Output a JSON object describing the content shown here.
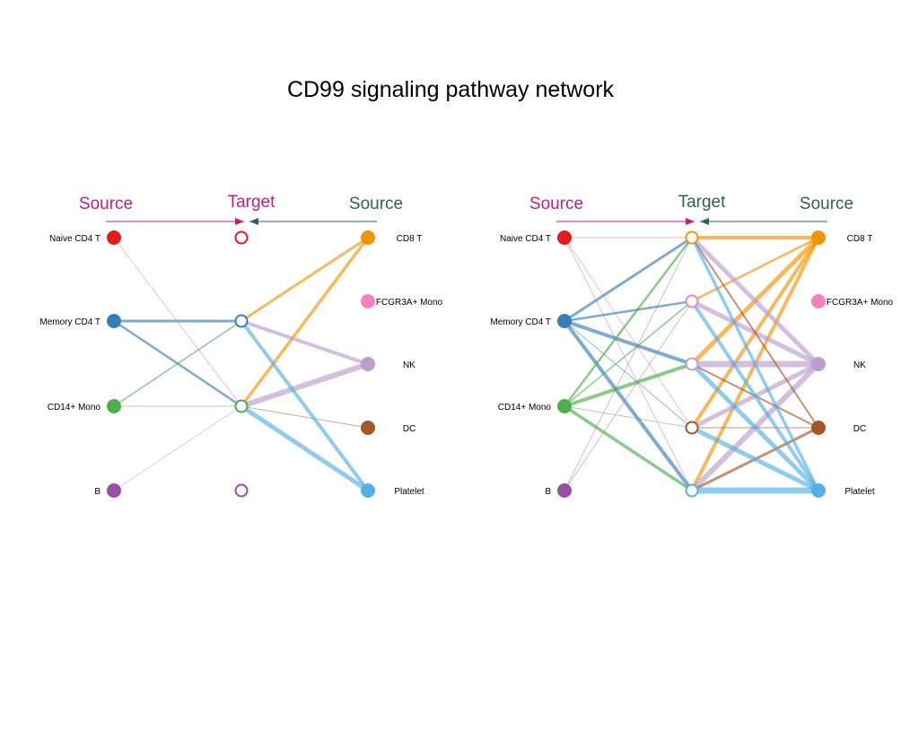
{
  "title": "CD99 signaling pathway network",
  "colors": {
    "source_left_header": "#c51b7d",
    "target_header": "#c51b7d",
    "source_right_header": "#2f6158",
    "arrow_left": "#c51b7d",
    "arrow_right": "#2f6158"
  },
  "cell_colors": {
    "Naive CD4 T": "#e41a1c",
    "Memory CD4 T": "#377eb8",
    "CD14+ Mono": "#4daf4a",
    "B": "#984ea3",
    "CD8 T": "#f29403",
    "FCGR3A+ Mono": "#f781bf",
    "NK": "#bc9dcc",
    "DC": "#a65628",
    "Platelet": "#54b0e4"
  },
  "panels": [
    {
      "headers": {
        "source_left": "Source",
        "target": "Target",
        "source_right": "Source"
      },
      "left_sources": [
        "Naive CD4 T",
        "Memory CD4 T",
        "CD14+ Mono",
        "B"
      ],
      "targets": [
        "Naive CD4 T",
        "Memory CD4 T",
        "CD14+ Mono",
        "B"
      ],
      "right_sources": [
        "CD8 T",
        "FCGR3A+ Mono",
        "NK",
        "DC",
        "Platelet"
      ],
      "edges": [
        {
          "from": "Naive CD4 T",
          "to": "CD14+ Mono",
          "weight": 0.5
        },
        {
          "from": "Memory CD4 T",
          "to": "Memory CD4 T",
          "weight": 3
        },
        {
          "from": "Memory CD4 T",
          "to": "CD14+ Mono",
          "weight": 2.5
        },
        {
          "from": "CD14+ Mono",
          "to": "Memory CD4 T",
          "weight": 1.5
        },
        {
          "from": "CD14+ Mono",
          "to": "CD14+ Mono",
          "weight": 0.8
        },
        {
          "from": "B",
          "to": "CD14+ Mono",
          "weight": 0.5
        },
        {
          "from": "CD8 T",
          "to": "Memory CD4 T",
          "weight": 3
        },
        {
          "from": "CD8 T",
          "to": "CD14+ Mono",
          "weight": 3.5
        },
        {
          "from": "NK",
          "to": "Memory CD4 T",
          "weight": 4
        },
        {
          "from": "NK",
          "to": "CD14+ Mono",
          "weight": 6
        },
        {
          "from": "DC",
          "to": "CD14+ Mono",
          "weight": 0.8
        },
        {
          "from": "Platelet",
          "to": "Memory CD4 T",
          "weight": 4
        },
        {
          "from": "Platelet",
          "to": "CD14+ Mono",
          "weight": 5
        }
      ]
    },
    {
      "headers": {
        "source_left": "Source",
        "target": "Target",
        "source_right": "Source"
      },
      "left_sources": [
        "Naive CD4 T",
        "Memory CD4 T",
        "CD14+ Mono",
        "B"
      ],
      "targets": [
        "CD8 T",
        "FCGR3A+ Mono",
        "NK",
        "DC",
        "Platelet"
      ],
      "right_sources": [
        "CD8 T",
        "FCGR3A+ Mono",
        "NK",
        "DC",
        "Platelet"
      ],
      "edges": [
        {
          "from": "Naive CD4 T",
          "to": "CD8 T",
          "weight": 0.5
        },
        {
          "from": "Naive CD4 T",
          "to": "DC",
          "weight": 0.5
        },
        {
          "from": "Naive CD4 T",
          "to": "Platelet",
          "weight": 0.5
        },
        {
          "from": "Memory CD4 T",
          "to": "CD8 T",
          "weight": 3
        },
        {
          "from": "Memory CD4 T",
          "to": "FCGR3A+ Mono",
          "weight": 2.5
        },
        {
          "from": "Memory CD4 T",
          "to": "NK",
          "weight": 4
        },
        {
          "from": "Memory CD4 T",
          "to": "DC",
          "weight": 0.8
        },
        {
          "from": "Memory CD4 T",
          "to": "Platelet",
          "weight": 4
        },
        {
          "from": "CD14+ Mono",
          "to": "CD8 T",
          "weight": 2.5
        },
        {
          "from": "CD14+ Mono",
          "to": "FCGR3A+ Mono",
          "weight": 1.5
        },
        {
          "from": "CD14+ Mono",
          "to": "NK",
          "weight": 4
        },
        {
          "from": "CD14+ Mono",
          "to": "DC",
          "weight": 0.8
        },
        {
          "from": "CD14+ Mono",
          "to": "Platelet",
          "weight": 3.5
        },
        {
          "from": "B",
          "to": "CD8 T",
          "weight": 0.6
        },
        {
          "from": "B",
          "to": "FCGR3A+ Mono",
          "weight": 0.6
        },
        {
          "from": "CD8 T",
          "to": "CD8 T",
          "weight": 4
        },
        {
          "from": "CD8 T",
          "to": "FCGR3A+ Mono",
          "weight": 2.5
        },
        {
          "from": "CD8 T",
          "to": "NK",
          "weight": 5
        },
        {
          "from": "CD8 T",
          "to": "DC",
          "weight": 4
        },
        {
          "from": "CD8 T",
          "to": "Platelet",
          "weight": 4
        },
        {
          "from": "NK",
          "to": "CD8 T",
          "weight": 5
        },
        {
          "from": "NK",
          "to": "FCGR3A+ Mono",
          "weight": 5
        },
        {
          "from": "NK",
          "to": "NK",
          "weight": 7
        },
        {
          "from": "NK",
          "to": "DC",
          "weight": 5
        },
        {
          "from": "NK",
          "to": "Platelet",
          "weight": 6
        },
        {
          "from": "DC",
          "to": "CD8 T",
          "weight": 2
        },
        {
          "from": "DC",
          "to": "NK",
          "weight": 2
        },
        {
          "from": "DC",
          "to": "DC",
          "weight": 1
        },
        {
          "from": "DC",
          "to": "Platelet",
          "weight": 3
        },
        {
          "from": "Platelet",
          "to": "CD8 T",
          "weight": 3.5
        },
        {
          "from": "Platelet",
          "to": "FCGR3A+ Mono",
          "weight": 4
        },
        {
          "from": "Platelet",
          "to": "NK",
          "weight": 5
        },
        {
          "from": "Platelet",
          "to": "DC",
          "weight": 5
        },
        {
          "from": "Platelet",
          "to": "Platelet",
          "weight": 7
        }
      ]
    }
  ]
}
